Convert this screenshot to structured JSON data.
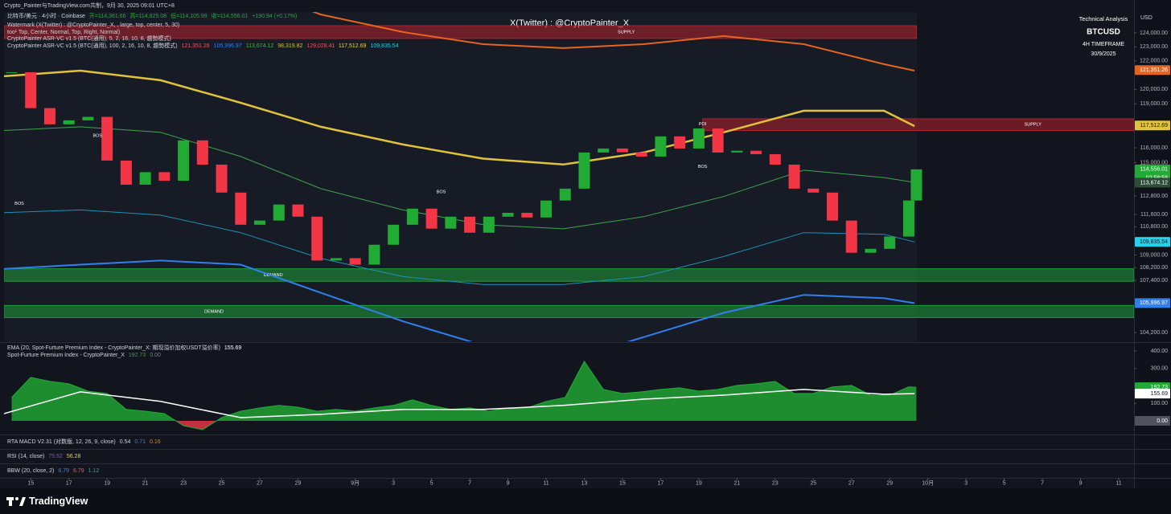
{
  "header": {
    "caption": "Crypto_Painter与TradingView.com共制，9月 30, 2025 09:01 UTC+8",
    "watermark": "X(Twitter) : @CryptoPainter_X",
    "info": [
      "Technical Analysis",
      "BTCUSD",
      "4H TIMEFRAME",
      "30/9/2025"
    ],
    "currency": "USD",
    "brand": "TradingView",
    "lines": [
      [
        {
          "text": "比特币/美元 · 4小时 · Coinbase",
          "color": "#d1d4dc"
        },
        {
          "text": "开=114,361.66",
          "color": "#22ab34"
        },
        {
          "text": "高=114,825.08",
          "color": "#22ab34"
        },
        {
          "text": "低=114,105.99",
          "color": "#22ab34"
        },
        {
          "text": "收=114,556.01",
          "color": "#22ab34"
        },
        {
          "text": "+190.94 (+0.17%)",
          "color": "#22ab34"
        }
      ],
      [
        {
          "text": "Watermark (X(Twitter) : @CryptoPainter_X, , large, top, center, 5, 30)",
          "color": "#d1d4dc"
        }
      ],
      [
        {
          "text": "too¹ Top, Center, Normal, Top, Right, Normal)",
          "color": "#d1d4dc"
        }
      ],
      [
        {
          "text": "CryptoPainter ASR-VC v1.5 (BTC(通用), 5, 2, 16, 10, 8, 趨勢模式)",
          "color": "#d1d4dc"
        }
      ],
      [
        {
          "text": "CryptoPainter ASR-VC v1.5 (BTC(通用), 100, 2, 16, 10, 8, 趨勢模式)",
          "color": "#d1d4dc"
        },
        {
          "text": "121,351.26",
          "color": "#f7525f"
        },
        {
          "text": "105,996.97",
          "color": "#2f80ed"
        },
        {
          "text": "113,674.12",
          "color": "#4caf50"
        },
        {
          "text": "98,319.82",
          "color": "#c9c53a"
        },
        {
          "text": "129,028.41",
          "color": "#f7525f"
        },
        {
          "text": "117,512.69",
          "color": "#e8d44d"
        },
        {
          "text": "109,835.54",
          "color": "#22d3ee"
        }
      ]
    ]
  },
  "panes": [
    [
      {
        "text": "RTA MACD V2.31 (对数版, 12, 26, 9, close)",
        "color": "#d1d4dc"
      },
      {
        "text": "0.54",
        "color": "#d1d4dc"
      },
      {
        "text": "0.71",
        "color": "#2f80ed"
      },
      {
        "text": "0.16",
        "color": "#f57c00"
      }
    ],
    [
      {
        "text": "RSI (14, close)",
        "color": "#d1d4dc"
      },
      {
        "text": "75.52",
        "color": "#7e57c2"
      },
      {
        "text": "56.28",
        "color": "#e8d44d"
      }
    ],
    [
      {
        "text": "BBW (20, close, 2)",
        "color": "#d1d4dc"
      },
      {
        "text": "6.79",
        "color": "#2f80ed"
      },
      {
        "text": "6.79",
        "color": "#f7525f"
      },
      {
        "text": "1.12",
        "color": "#26a69a"
      }
    ]
  ],
  "chart_data": [
    {
      "type": "candlestick",
      "log_scale": true,
      "up_color": "#22ab34",
      "down_color": "#f23645",
      "x": [
        -1,
        0,
        1,
        2,
        3,
        4,
        5,
        6,
        7,
        8,
        9,
        10,
        11,
        12,
        13,
        14,
        15,
        16,
        17,
        18,
        19,
        20,
        21,
        22,
        23,
        24,
        25,
        26,
        27,
        28,
        29,
        30,
        31,
        32,
        33,
        34,
        35,
        36,
        37,
        38,
        39,
        40,
        41,
        42,
        43,
        44,
        45,
        46,
        46.4
      ],
      "values": [
        121200,
        118700,
        117590,
        117860,
        118100,
        115140,
        113540,
        114370,
        113800,
        116500,
        114870,
        113020,
        110930,
        111200,
        112240,
        111450,
        108650,
        108800,
        108390,
        109650,
        110930,
        111970,
        110680,
        111450,
        110420,
        111450,
        111700,
        111400,
        112500,
        113280,
        115680,
        115950,
        115700,
        115410,
        116770,
        115950,
        117310,
        115680,
        115800,
        115570,
        114870,
        113280,
        113020,
        111200,
        109140,
        109390,
        110170,
        112500,
        114556.01
      ],
      "xlim": [
        -1.4,
        57.8
      ],
      "ylim": [
        103670,
        125510
      ],
      "xticks": [
        {
          "value": 0,
          "label": "15"
        },
        {
          "value": 2,
          "label": "17"
        },
        {
          "value": 4,
          "label": "19"
        },
        {
          "value": 6,
          "label": "21"
        },
        {
          "value": 8,
          "label": "23"
        },
        {
          "value": 10,
          "label": "25"
        },
        {
          "value": 12,
          "label": "27"
        },
        {
          "value": 14,
          "label": "29"
        },
        {
          "value": 17,
          "label": "9月"
        },
        {
          "value": 19,
          "label": "3"
        },
        {
          "value": 21,
          "label": "5"
        },
        {
          "value": 23,
          "label": "7"
        },
        {
          "value": 25,
          "label": "9"
        },
        {
          "value": 27,
          "label": "11"
        },
        {
          "value": 29,
          "label": "13"
        },
        {
          "value": 31,
          "label": "15"
        },
        {
          "value": 33,
          "label": "17"
        },
        {
          "value": 35,
          "label": "19"
        },
        {
          "value": 37,
          "label": "21"
        },
        {
          "value": 39,
          "label": "23"
        },
        {
          "value": 41,
          "label": "25"
        },
        {
          "value": 43,
          "label": "27"
        },
        {
          "value": 45,
          "label": "29"
        },
        {
          "value": 47,
          "label": "10月"
        },
        {
          "value": 49,
          "label": "3"
        },
        {
          "value": 51,
          "label": "5"
        },
        {
          "value": 53,
          "label": "7"
        },
        {
          "value": 55,
          "label": "9"
        },
        {
          "value": 57,
          "label": "11"
        }
      ],
      "yticks": [
        {
          "value": 124000,
          "label": "124,000.00"
        },
        {
          "value": 123000,
          "label": "123,000.00"
        },
        {
          "value": 122000,
          "label": "122,000.00"
        },
        {
          "value": 120000,
          "label": "120,000.00"
        },
        {
          "value": 119000,
          "label": "119,000.00"
        },
        {
          "value": 116000,
          "label": "116,000.00"
        },
        {
          "value": 115000,
          "label": "115,000.00"
        },
        {
          "value": 112800,
          "label": "112,800.00"
        },
        {
          "value": 111600,
          "label": "111,600.00"
        },
        {
          "value": 110800,
          "label": "110,800.00"
        },
        {
          "value": 109000,
          "label": "109,000.00"
        },
        {
          "value": 108200,
          "label": "108,200.00"
        },
        {
          "value": 107400,
          "label": "107,400.00"
        },
        {
          "value": 104200,
          "label": "104,200.00"
        }
      ],
      "indicators": {
        "x": [
          -1.4,
          2.6,
          6.8,
          11,
          15.2,
          19.5,
          23.7,
          27.9,
          32.1,
          36.3,
          40.5,
          44.7,
          46.3
        ],
        "series": [
          {
            "color": "#e0c23c",
            "width": 2.5,
            "values": [
              120920,
              121310,
              120640,
              119070,
              117420,
              116220,
              115270,
              114880,
              115680,
              117040,
              118520,
              118520,
              117470
            ]
          },
          {
            "color": "#e8641e",
            "width": 2,
            "values": [
              130000,
              130000,
              129000,
              127500,
              125330,
              124060,
              123190,
              122910,
              123190,
              123770,
              123190,
              121770,
              121310
            ]
          },
          {
            "color": "#3fa34d",
            "width": 1,
            "values": [
              117170,
              117420,
              117040,
              115410,
              113280,
              111890,
              110930,
              110670,
              111450,
              112760,
              114500,
              114010,
              113690
            ]
          },
          {
            "color": "#1e90b8",
            "width": 1,
            "values": [
              111710,
              111890,
              111550,
              110420,
              108780,
              107640,
              107150,
              107150,
              107640,
              108900,
              110420,
              110320,
              109830
            ]
          },
          {
            "color": "#2f80ed",
            "width": 2,
            "values": [
              108130,
              108390,
              108650,
              108390,
              106630,
              104880,
              103430,
              102470,
              103920,
              105400,
              106500,
              106300,
              105990
            ]
          }
        ]
      },
      "zones": [
        {
          "label": "SUPPLY",
          "low": 123600,
          "high": 124520,
          "from": -1.4,
          "to": 46.4,
          "label_x": 31.2,
          "color": "#b3202c"
        },
        {
          "label": "SUPPLY",
          "low": 117170,
          "high": 117970,
          "from": 35.2,
          "to": 57.8,
          "label_x": 52.5,
          "color": "#b3202c"
        },
        {
          "label": "DEMAND",
          "low": 107350,
          "high": 108130,
          "from": -1.4,
          "to": 57.8,
          "label_x": 12.7,
          "color": "#1e9e3a"
        },
        {
          "label": "DEMAND",
          "low": 105110,
          "high": 105850,
          "from": -1.4,
          "to": 57.8,
          "label_x": 9.6,
          "color": "#1e9e3a"
        }
      ],
      "annotations": [
        {
          "text": "BOS",
          "x": -0.6,
          "y": 112300
        },
        {
          "text": "BOS",
          "x": 3.5,
          "y": 116810
        },
        {
          "text": "BOS",
          "x": 21.5,
          "y": 113070
        },
        {
          "text": "BOS",
          "x": 35.2,
          "y": 114720
        },
        {
          "text": "POI",
          "x": 35.2,
          "y": 117590
        }
      ],
      "price_tags": [
        {
          "value": 121351.26,
          "label": "121,351.26",
          "color": "#e8641e",
          "text_color": "#ffffff"
        },
        {
          "value": 117512.69,
          "label": "117,512.69",
          "color": "#e0c23c",
          "text_color": "#131722"
        },
        {
          "value": 114556.01,
          "label": "114,556.01",
          "color": "#22ab34",
          "text_color": "#ffffff",
          "sub": "02:58:58"
        },
        {
          "value": 113674.12,
          "label": "113,674.12",
          "color": "#2e4d37",
          "text_color": "#ffffff"
        },
        {
          "value": 109835.54,
          "label": "109,835.54",
          "color": "#22d3ee",
          "text_color": "#131722"
        },
        {
          "value": 105996.97,
          "label": "105,996.97",
          "color": "#2f80ed",
          "text_color": "#ffffff"
        }
      ]
    },
    {
      "type": "area",
      "color": "#22ab34",
      "x": [
        -1,
        0,
        1,
        2,
        3,
        4,
        5,
        6,
        7,
        8,
        9,
        10,
        11,
        12,
        13,
        14,
        15,
        16,
        17,
        18,
        19,
        20,
        21,
        22,
        23,
        24,
        25,
        26,
        27,
        28,
        29,
        30,
        31,
        32,
        33,
        34,
        35,
        36,
        37,
        38,
        39,
        40,
        41,
        42,
        43,
        44,
        45,
        46,
        46.4
      ],
      "values": [
        134,
        249,
        226,
        212,
        170,
        157,
        65,
        55,
        41,
        -28,
        -51,
        18,
        55,
        74,
        88,
        78,
        55,
        65,
        55,
        74,
        88,
        120,
        88,
        65,
        74,
        55,
        74,
        74,
        111,
        134,
        341,
        180,
        157,
        166,
        180,
        189,
        170,
        180,
        203,
        212,
        226,
        157,
        157,
        194,
        203,
        147,
        147,
        194,
        192.73
      ],
      "negative_color": "#f23645",
      "ylim": [
        -74,
        442
      ],
      "yticks": [
        {
          "value": 400,
          "label": "400.00"
        },
        {
          "value": 300,
          "label": "300.00"
        },
        {
          "value": 100,
          "label": "100.00"
        }
      ],
      "ema": {
        "color": "#ffffff",
        "x": [
          -1.4,
          2.6,
          6.8,
          11,
          15.2,
          19.5,
          23.7,
          27.9,
          32.1,
          36.3,
          40.5,
          44.7,
          46.3
        ],
        "values": [
          41,
          166,
          111,
          18,
          37,
          65,
          65,
          88,
          124,
          147,
          180,
          152,
          155.69
        ]
      },
      "legend": [
        [
          {
            "text": "EMA (20, Spot-Furture Premium Index - CryptoPainter_X: 期现溢价加权USDT溢价率)",
            "color": "#d1d4dc"
          },
          {
            "text": "155.69",
            "color": "#ffffff"
          }
        ],
        [
          {
            "text": "Spot-Furture Premium Index - CryptoPainter_X",
            "color": "#d1d4dc"
          },
          {
            "text": "192.73",
            "color": "#22ab34"
          },
          {
            "text": "0.00",
            "color": "#787b86"
          }
        ]
      ],
      "price_tags": [
        {
          "value": 192.73,
          "label": "192.73",
          "color": "#22ab34",
          "text_color": "#ffffff"
        },
        {
          "value": 155.69,
          "label": "155.69",
          "color": "#ffffff",
          "text_color": "#131722"
        },
        {
          "value": 0,
          "label": "0.00",
          "color": "#50535e",
          "text_color": "#ffffff"
        }
      ]
    }
  ]
}
